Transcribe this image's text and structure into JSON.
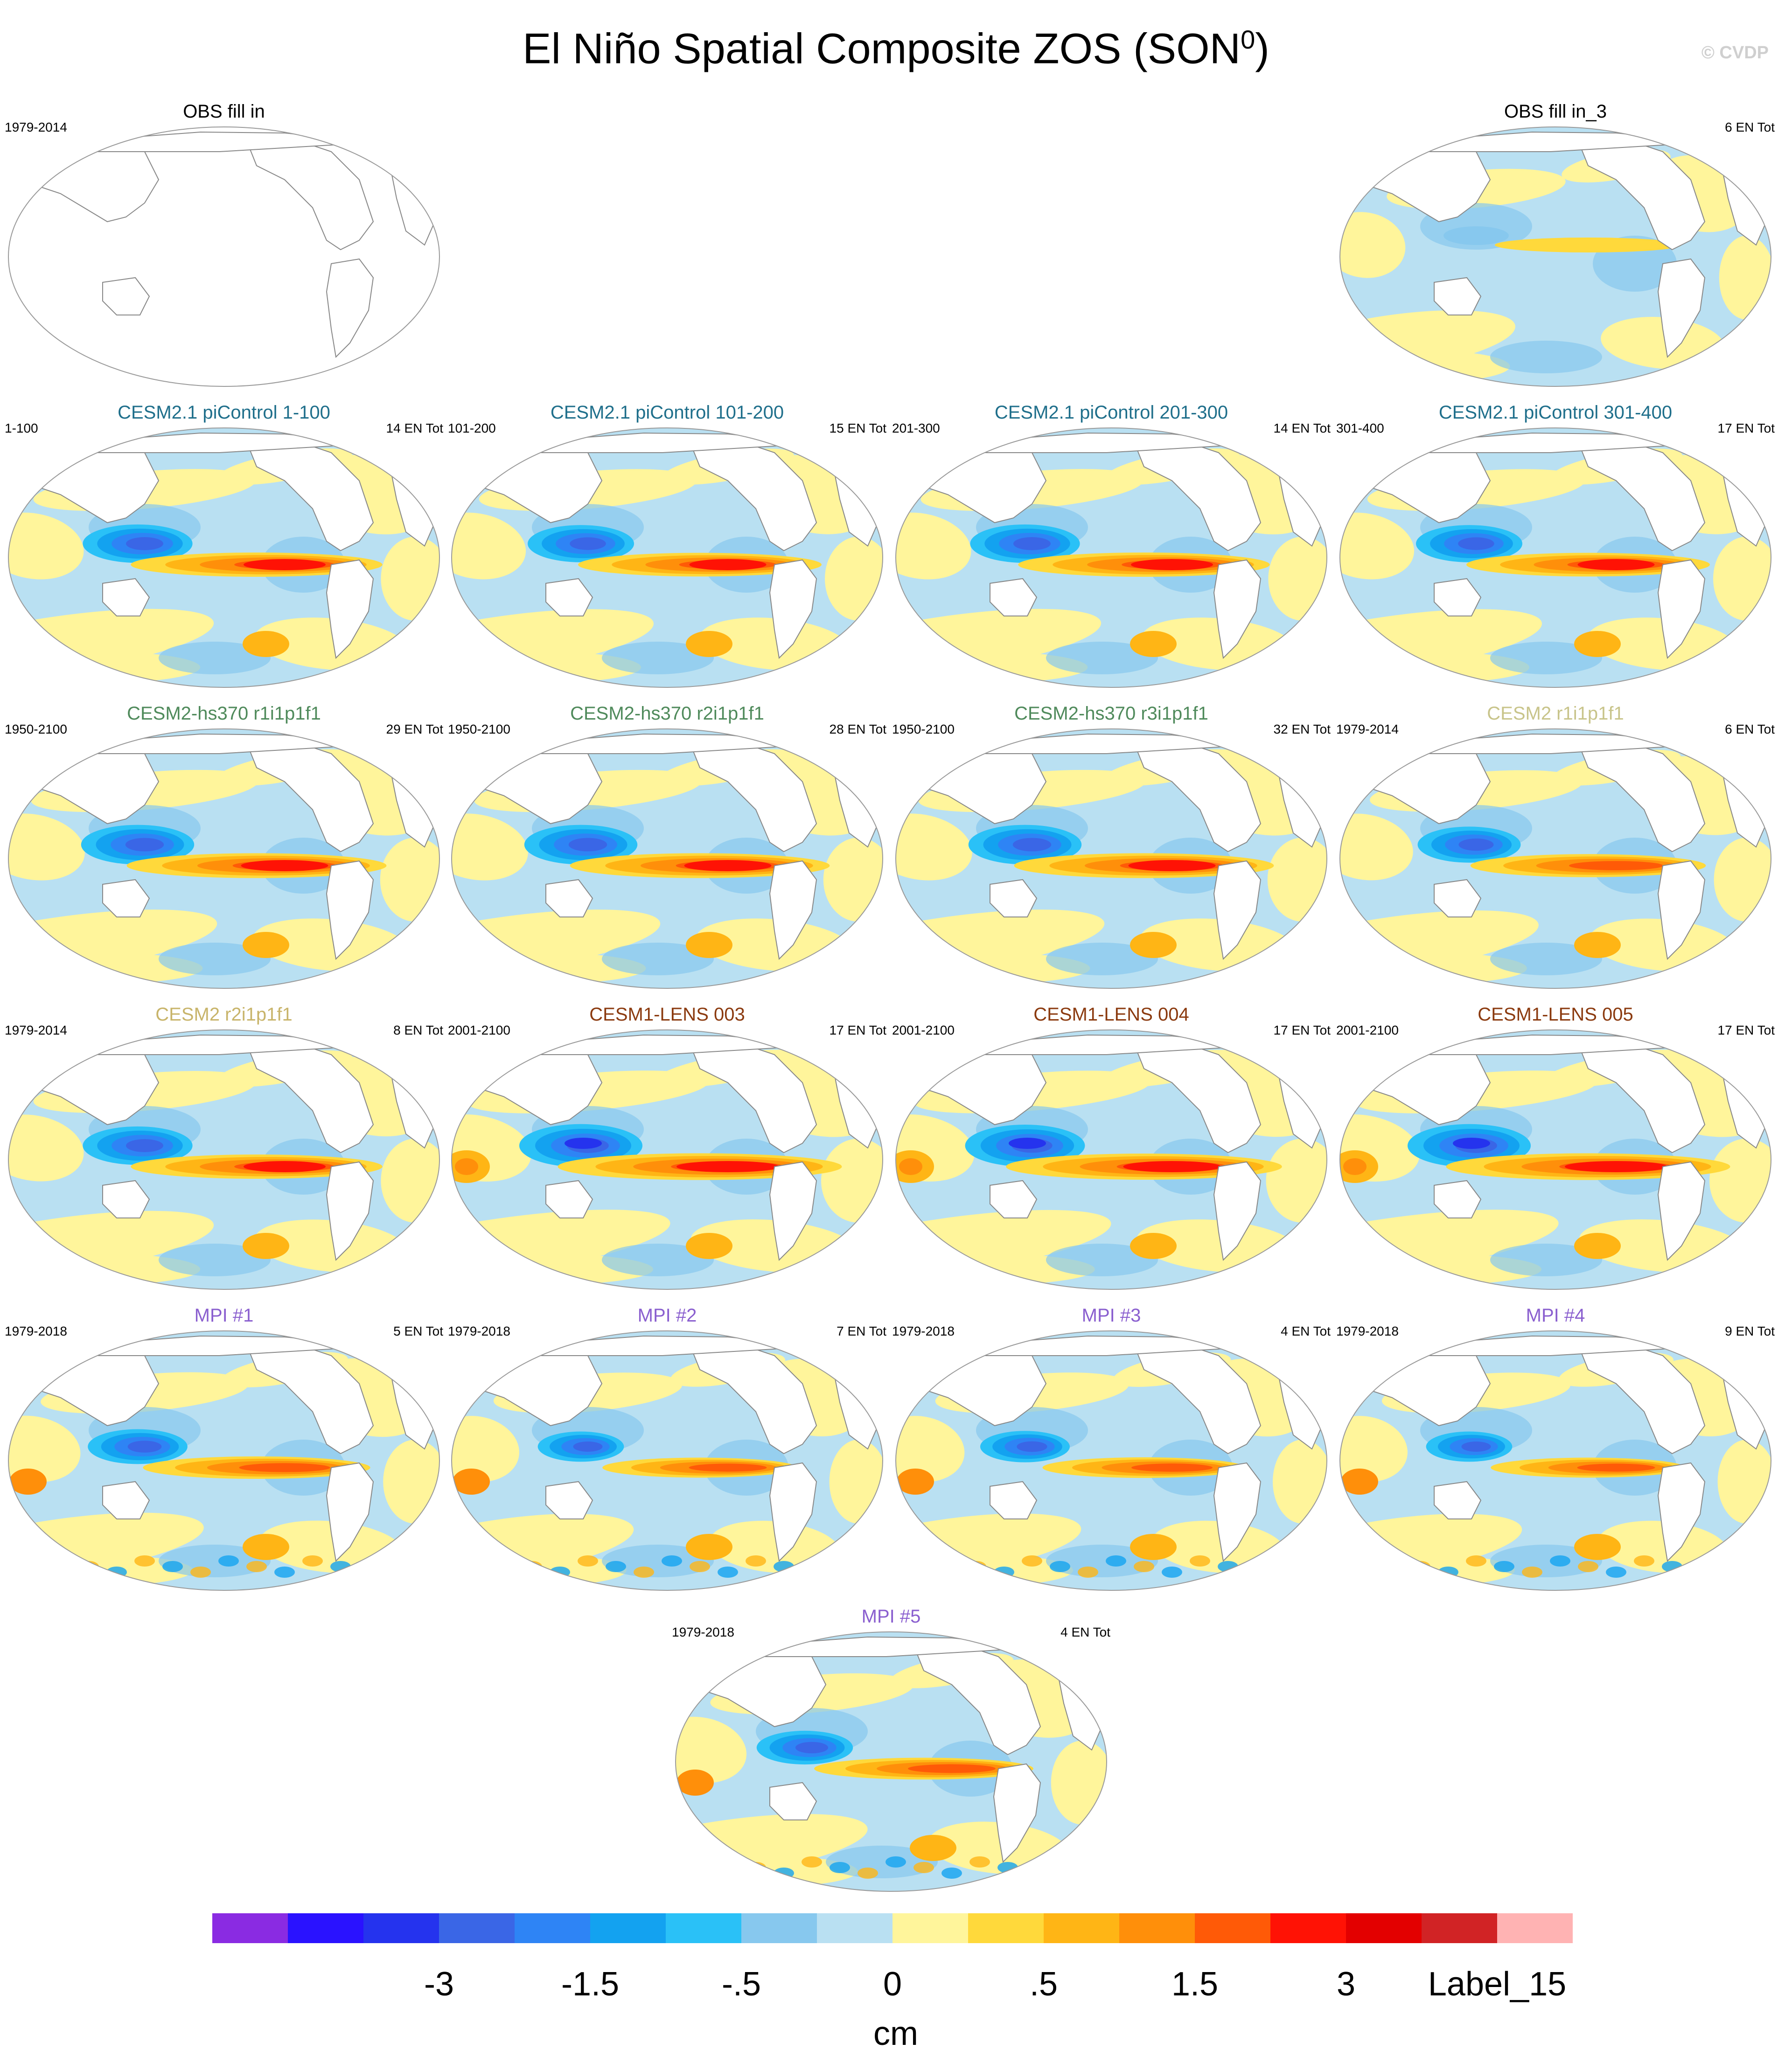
{
  "title": "El Niño Spatial Composite ZOS (SON",
  "title_superscript": "0",
  "title_suffix": ")",
  "copyright": "© CVDP",
  "chart_data": {
    "type": "heatmap",
    "description_variable": "ZOS",
    "colorbar": {
      "units": "cm",
      "colors": [
        "#8a2be2",
        "#2a12ff",
        "#2533ee",
        "#3a66e6",
        "#2e84f5",
        "#13a2f0",
        "#2ac1f7",
        "#87c8ee",
        "#b9e0f2",
        "#fff59b",
        "#ffd93b",
        "#ffb515",
        "#ff8f0a",
        "#ff5a07",
        "#ff1205",
        "#e30000",
        "#d12325",
        "#ffb3b3"
      ],
      "tick_labels": [
        {
          "text": "-3",
          "index": 2
        },
        {
          "text": "-1.5",
          "index": 4
        },
        {
          "text": "-.5",
          "index": 6
        },
        {
          "text": "0",
          "index": 8
        },
        {
          "text": ".5",
          "index": 10
        },
        {
          "text": "1.5",
          "index": 12
        },
        {
          "text": "3",
          "index": 14
        },
        {
          "text": "Label_15",
          "index": 16
        }
      ]
    },
    "panels": [
      {
        "title": "OBS fill in",
        "title_color": "#000000",
        "left": "1979-2014",
        "right": "",
        "empty": true,
        "strength": 0,
        "pattern": "none"
      },
      {
        "title": "OBS fill in_3",
        "title_color": "#000000",
        "left": "",
        "right": "6 EN Tot",
        "empty": false,
        "strength": 0.35,
        "pattern": "obs"
      },
      {
        "title": "CESM2.1 piControl 1-100",
        "title_color": "#1f6f8b",
        "left": "1-100",
        "right": "14 EN Tot",
        "empty": false,
        "strength": 0.8,
        "pattern": "enso"
      },
      {
        "title": "CESM2.1 piControl 101-200",
        "title_color": "#1f6f8b",
        "left": "101-200",
        "right": "15 EN Tot",
        "empty": false,
        "strength": 0.75,
        "pattern": "enso"
      },
      {
        "title": "CESM2.1 piControl 201-300",
        "title_color": "#1f6f8b",
        "left": "201-300",
        "right": "14 EN Tot",
        "empty": false,
        "strength": 0.8,
        "pattern": "enso"
      },
      {
        "title": "CESM2.1 piControl 301-400",
        "title_color": "#1f6f8b",
        "left": "301-400",
        "right": "17 EN Tot",
        "empty": false,
        "strength": 0.75,
        "pattern": "enso"
      },
      {
        "title": "CESM2-hs370 r1i1p1f1",
        "title_color": "#4f8a5b",
        "left": "1950-2100",
        "right": "29 EN Tot",
        "empty": false,
        "strength": 0.85,
        "pattern": "enso"
      },
      {
        "title": "CESM2-hs370 r2i1p1f1",
        "title_color": "#4f8a5b",
        "left": "1950-2100",
        "right": "28 EN Tot",
        "empty": false,
        "strength": 0.85,
        "pattern": "enso"
      },
      {
        "title": "CESM2-hs370 r3i1p1f1",
        "title_color": "#4f8a5b",
        "left": "1950-2100",
        "right": "32 EN Tot",
        "empty": false,
        "strength": 0.85,
        "pattern": "enso"
      },
      {
        "title": "CESM2 r1i1p1f1",
        "title_color": "#c8c48a",
        "left": "1979-2014",
        "right": "6 EN Tot",
        "empty": false,
        "strength": 0.7,
        "pattern": "enso"
      },
      {
        "title": "CESM2 r2i1p1f1",
        "title_color": "#c8b46a",
        "left": "1979-2014",
        "right": "8 EN Tot",
        "empty": false,
        "strength": 0.8,
        "pattern": "enso"
      },
      {
        "title": "CESM1-LENS 003",
        "title_color": "#8b3a0f",
        "left": "2001-2100",
        "right": "17 EN Tot",
        "empty": false,
        "strength": 1.0,
        "pattern": "lens"
      },
      {
        "title": "CESM1-LENS 004",
        "title_color": "#8b3a0f",
        "left": "2001-2100",
        "right": "17 EN Tot",
        "empty": false,
        "strength": 0.95,
        "pattern": "lens"
      },
      {
        "title": "CESM1-LENS 005",
        "title_color": "#8b3a0f",
        "left": "2001-2100",
        "right": "17 EN Tot",
        "empty": false,
        "strength": 1.0,
        "pattern": "lens"
      },
      {
        "title": "MPI #1",
        "title_color": "#8a5fcf",
        "left": "1979-2018",
        "right": "5 EN Tot",
        "empty": false,
        "strength": 0.65,
        "pattern": "mpi"
      },
      {
        "title": "MPI #2",
        "title_color": "#8a5fcf",
        "left": "1979-2018",
        "right": "7 EN Tot",
        "empty": false,
        "strength": 0.45,
        "pattern": "mpi"
      },
      {
        "title": "MPI #3",
        "title_color": "#8a5fcf",
        "left": "1979-2018",
        "right": "4 EN Tot",
        "empty": false,
        "strength": 0.5,
        "pattern": "mpi"
      },
      {
        "title": "MPI #4",
        "title_color": "#8a5fcf",
        "left": "1979-2018",
        "right": "9 EN Tot",
        "empty": false,
        "strength": 0.45,
        "pattern": "mpi"
      },
      {
        "title": "MPI #5",
        "title_color": "#8a5fcf",
        "left": "1979-2018",
        "right": "4 EN Tot",
        "empty": false,
        "strength": 0.6,
        "pattern": "mpi"
      }
    ]
  }
}
